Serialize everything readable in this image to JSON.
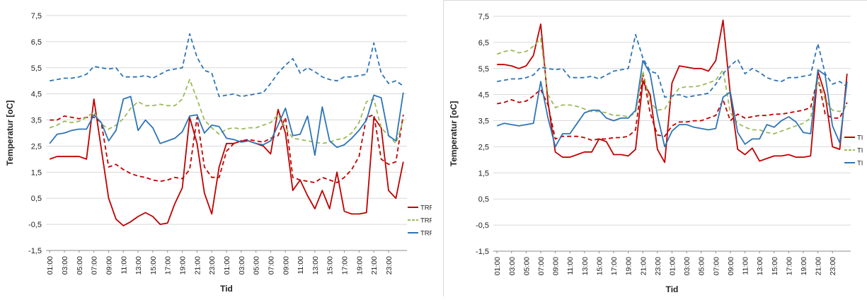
{
  "chart_data": [
    {
      "type": "line",
      "xlabel": "Tid",
      "ylabel": "Temperatur [oC]",
      "ylim": [
        -1.5,
        7.5
      ],
      "yticks": [
        "7,5",
        "6,5",
        "5,5",
        "4,5",
        "3,5",
        "2,5",
        "1,5",
        "0,5",
        "-0,5",
        "-1,5"
      ],
      "xticklabels": [
        "01:00",
        "03:00",
        "05:00",
        "07:00",
        "09:00",
        "11:00",
        "13:00",
        "15:00",
        "17:00",
        "19:00",
        "21:00",
        "23:00",
        "01:00",
        "03:00",
        "05:00",
        "07:00",
        "09:00",
        "11:00",
        "13:00",
        "15:00",
        "17:00",
        "19:00",
        "21:00",
        "23:00"
      ],
      "grid": "horizontal",
      "legend_position": "right",
      "series": [
        {
          "name": "TRF",
          "color": "#c00000",
          "style": "solid",
          "values": [
            2.0,
            2.1,
            2.1,
            2.1,
            2.1,
            2.0,
            4.3,
            2.4,
            0.5,
            -0.3,
            -0.55,
            -0.4,
            -0.2,
            -0.05,
            -0.2,
            -0.5,
            -0.45,
            0.3,
            0.9,
            3.6,
            2.6,
            0.7,
            -0.1,
            1.7,
            2.6,
            2.6,
            2.7,
            2.7,
            2.6,
            2.5,
            2.2,
            3.9,
            3.0,
            0.8,
            1.2,
            0.6,
            0.1,
            0.8,
            0.1,
            1.5,
            0.0,
            -0.1,
            -0.1,
            -0.05,
            3.6,
            3.2,
            0.8,
            0.5,
            1.9
          ]
        },
        {
          "name": "",
          "color": "#c00000",
          "style": "dashed",
          "values": [
            3.5,
            3.5,
            3.65,
            3.6,
            3.55,
            3.6,
            3.6,
            3.4,
            1.7,
            1.8,
            1.6,
            1.45,
            1.35,
            1.3,
            1.2,
            1.15,
            1.2,
            1.3,
            1.25,
            1.6,
            3.6,
            1.7,
            1.3,
            1.3,
            2.3,
            2.6,
            2.7,
            2.75,
            2.7,
            2.65,
            2.8,
            2.9,
            3.6,
            1.3,
            1.2,
            1.15,
            1.1,
            1.3,
            1.2,
            1.1,
            1.3,
            1.6,
            2.1,
            3.6,
            3.7,
            2.0,
            1.8,
            1.9,
            3.7
          ]
        },
        {
          "name": "TRF",
          "color": "#9bbb59",
          "style": "dashed",
          "values": [
            3.2,
            3.3,
            3.45,
            3.4,
            3.45,
            3.6,
            3.8,
            3.35,
            3.15,
            3.3,
            3.55,
            3.95,
            4.2,
            4.05,
            4.05,
            4.1,
            4.05,
            4.05,
            4.3,
            5.05,
            4.3,
            3.5,
            3.2,
            2.95,
            3.15,
            3.2,
            3.15,
            3.2,
            3.2,
            3.3,
            3.4,
            3.7,
            3.2,
            2.8,
            2.75,
            2.7,
            2.65,
            2.6,
            2.65,
            2.75,
            2.8,
            3.0,
            3.4,
            4.2,
            4.3,
            3.2,
            2.9,
            2.6,
            3.5
          ]
        },
        {
          "name": "TRF",
          "color": "#2e75b6",
          "style": "solid",
          "values": [
            2.6,
            2.95,
            3.0,
            3.1,
            3.15,
            3.15,
            3.7,
            3.4,
            2.7,
            3.1,
            4.3,
            4.4,
            3.1,
            3.5,
            3.2,
            2.6,
            2.7,
            2.8,
            3.05,
            3.65,
            3.7,
            3.0,
            3.3,
            3.25,
            2.8,
            2.75,
            2.65,
            2.7,
            2.6,
            2.55,
            2.7,
            3.3,
            3.95,
            2.9,
            2.95,
            3.65,
            2.15,
            4.0,
            2.7,
            2.45,
            2.55,
            2.8,
            3.1,
            3.5,
            4.45,
            4.35,
            2.9,
            2.7,
            4.55
          ]
        },
        {
          "name": "",
          "color": "#2e75b6",
          "style": "dashed",
          "values": [
            5.0,
            5.05,
            5.1,
            5.1,
            5.15,
            5.25,
            5.55,
            5.5,
            5.45,
            5.5,
            5.15,
            5.15,
            5.15,
            5.2,
            5.1,
            5.25,
            5.4,
            5.45,
            5.5,
            6.8,
            5.9,
            5.4,
            5.3,
            4.4,
            4.45,
            4.5,
            4.4,
            4.45,
            4.5,
            4.55,
            4.9,
            5.3,
            5.6,
            5.85,
            5.3,
            5.5,
            5.35,
            5.15,
            5.05,
            5.0,
            5.15,
            5.15,
            5.2,
            5.25,
            6.45,
            5.3,
            4.9,
            5.0,
            4.8
          ]
        }
      ]
    },
    {
      "type": "line",
      "xlabel": "Tid",
      "ylabel": "Temperatur [oC]",
      "ylim": [
        -1.5,
        7.5
      ],
      "yticks": [
        "7,5",
        "6,5",
        "5,5",
        "4,5",
        "3,5",
        "2,5",
        "1,5",
        "0,5",
        "-0,5",
        "-1,5"
      ],
      "xticklabels": [
        "01:00",
        "03:00",
        "05:00",
        "07:00",
        "09:00",
        "11:00",
        "13:00",
        "15:00",
        "17:00",
        "19:00",
        "21:00",
        "23:00",
        "01:00",
        "03:00",
        "05:00",
        "07:00",
        "09:00",
        "11:00",
        "13:00",
        "15:00",
        "17:00",
        "19:00",
        "21:00",
        "23:00"
      ],
      "grid": "horizontal",
      "legend_position": "right",
      "series": [
        {
          "name": "TI",
          "color": "#c00000",
          "style": "solid",
          "values": [
            5.65,
            5.65,
            5.6,
            5.5,
            5.6,
            6.0,
            7.2,
            4.2,
            2.3,
            2.1,
            2.1,
            2.2,
            2.3,
            2.3,
            2.8,
            2.7,
            2.2,
            2.2,
            2.15,
            2.4,
            5.0,
            4.5,
            2.4,
            1.9,
            4.95,
            5.6,
            5.55,
            5.5,
            5.5,
            5.4,
            5.8,
            7.35,
            4.5,
            2.4,
            2.2,
            2.45,
            1.95,
            2.05,
            2.15,
            2.15,
            2.2,
            2.1,
            2.1,
            2.15,
            5.4,
            4.5,
            2.5,
            2.4,
            5.3
          ]
        },
        {
          "name": "",
          "color": "#c00000",
          "style": "dashed",
          "values": [
            4.15,
            4.2,
            4.3,
            4.2,
            4.25,
            4.45,
            4.7,
            4.1,
            2.8,
            2.9,
            2.9,
            2.9,
            2.85,
            2.75,
            2.8,
            2.8,
            2.85,
            2.85,
            2.9,
            3.15,
            5.3,
            3.8,
            2.95,
            2.9,
            3.3,
            3.45,
            3.45,
            3.5,
            3.5,
            3.6,
            3.7,
            4.3,
            3.5,
            3.75,
            3.6,
            3.65,
            3.7,
            3.7,
            3.75,
            3.75,
            3.8,
            3.85,
            3.9,
            4.0,
            5.15,
            3.75,
            3.6,
            3.6,
            4.2
          ]
        },
        {
          "name": "TI",
          "color": "#9bbb59",
          "style": "dashed",
          "values": [
            6.05,
            6.15,
            6.2,
            6.1,
            6.15,
            6.35,
            6.65,
            4.5,
            4.0,
            4.1,
            4.1,
            4.05,
            3.95,
            3.85,
            3.85,
            3.8,
            3.7,
            3.7,
            3.65,
            3.8,
            5.4,
            4.2,
            3.9,
            3.95,
            4.4,
            4.75,
            4.8,
            4.8,
            4.85,
            4.95,
            5.05,
            5.45,
            3.8,
            3.4,
            3.25,
            3.15,
            3.15,
            3.05,
            3.0,
            3.1,
            3.2,
            3.3,
            3.4,
            3.6,
            5.1,
            4.3,
            3.9,
            3.85,
            4.1
          ]
        },
        {
          "name": "TI",
          "color": "#2e75b6",
          "style": "solid",
          "values": [
            3.3,
            3.4,
            3.35,
            3.3,
            3.35,
            3.4,
            5.0,
            3.6,
            2.5,
            3.0,
            3.0,
            3.4,
            3.8,
            3.9,
            3.9,
            3.6,
            3.5,
            3.6,
            3.6,
            3.9,
            5.8,
            5.3,
            3.7,
            2.5,
            3.1,
            3.35,
            3.35,
            3.25,
            3.2,
            3.15,
            3.2,
            4.4,
            4.6,
            3.05,
            2.6,
            2.8,
            2.8,
            3.35,
            3.25,
            3.5,
            3.65,
            3.45,
            3.05,
            3.0,
            5.45,
            5.25,
            3.3,
            2.65,
            5.0
          ]
        },
        {
          "name": "",
          "color": "#2e75b6",
          "style": "dashed",
          "values": [
            5.0,
            5.05,
            5.1,
            5.1,
            5.15,
            5.25,
            5.55,
            5.5,
            5.45,
            5.5,
            5.15,
            5.15,
            5.15,
            5.2,
            5.1,
            5.25,
            5.4,
            5.45,
            5.5,
            6.8,
            5.9,
            5.4,
            5.3,
            4.4,
            4.45,
            4.5,
            4.4,
            4.45,
            4.5,
            4.55,
            4.9,
            5.3,
            5.6,
            5.85,
            5.3,
            5.5,
            5.35,
            5.15,
            5.05,
            5.0,
            5.15,
            5.15,
            5.2,
            5.25,
            6.45,
            5.3,
            4.9,
            5.0,
            4.8
          ]
        }
      ]
    }
  ]
}
